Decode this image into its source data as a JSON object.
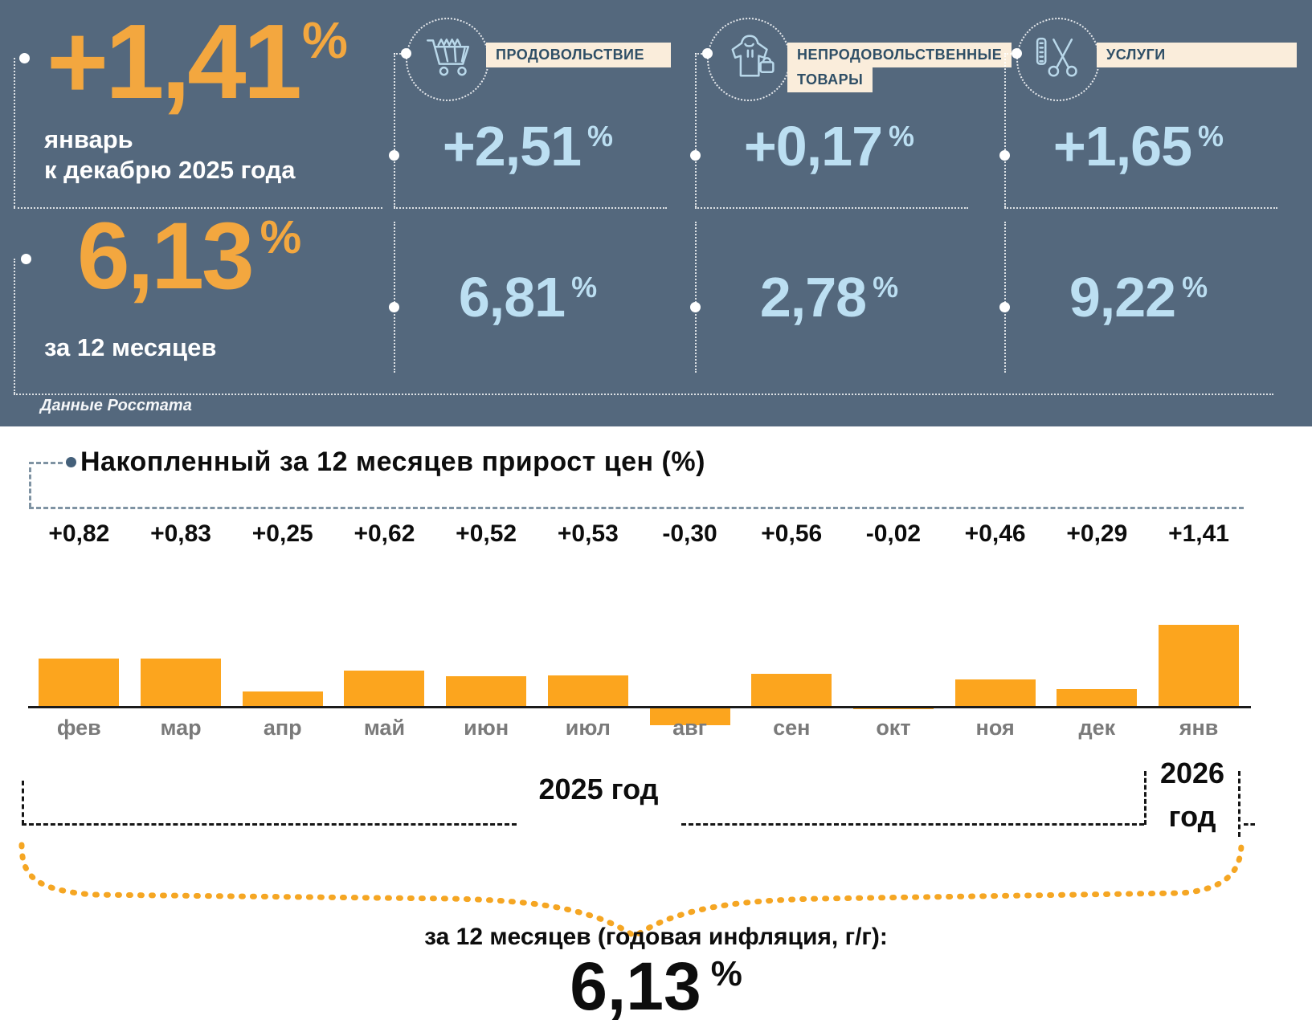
{
  "header": {
    "monthly_change": {
      "value": "+1,41",
      "percent_sign": "%",
      "caption_line1": "январь",
      "caption_line2": "к декабрю 2025 года"
    },
    "annual_change": {
      "value": "6,13",
      "percent_sign": "%",
      "caption": "за 12 месяцев"
    },
    "source_note": "Данные Росстата",
    "categories": [
      {
        "label": "ПРОДОВОЛЬСТВИЕ",
        "label_line2": "",
        "monthly": "+2,51",
        "annual": "6,81",
        "percent_sign": "%",
        "icon": "shopping-cart-icon"
      },
      {
        "label": "НЕПРОДОВОЛЬСТВЕННЫЕ",
        "label_line2": "ТОВАРЫ",
        "monthly": "+0,17",
        "annual": "2,78",
        "percent_sign": "%",
        "icon": "clothing-bag-icon"
      },
      {
        "label": "УСЛУГИ",
        "label_line2": "",
        "monthly": "+1,65",
        "annual": "9,22",
        "percent_sign": "%",
        "icon": "scissors-comb-icon"
      }
    ]
  },
  "chart_data": {
    "type": "bar",
    "title": "Накопленный за 12 месяцев прирост цен (%)",
    "categories": [
      "фев",
      "мар",
      "апр",
      "май",
      "июн",
      "июл",
      "авг",
      "сен",
      "окт",
      "ноя",
      "дек",
      "янв"
    ],
    "values": [
      0.82,
      0.83,
      0.25,
      0.62,
      0.52,
      0.53,
      -0.3,
      0.56,
      -0.02,
      0.46,
      0.29,
      1.41
    ],
    "data_labels": [
      "+0,82",
      "+0,83",
      "+0,25",
      "+0,62",
      "+0,52",
      "+0,53",
      "-0,30",
      "+0,56",
      "-0,02",
      "+0,46",
      "+0,29",
      "+1,41"
    ],
    "bar_color": "#FCA51E",
    "xlabel": "",
    "ylabel": "",
    "ylim": [
      -0.35,
      1.5
    ],
    "grid": false,
    "legend": null
  },
  "timeline": {
    "year_left": "2025 год",
    "year_right_line1": "2026",
    "year_right_line2": "год"
  },
  "summary": {
    "label": "за 12 месяцев (годовая инфляция, г/г):",
    "value": "6,13",
    "percent_sign": "%"
  },
  "colors": {
    "header_bg": "#54687D",
    "accent_orange": "#F3A73F",
    "bar_orange": "#FCA51E",
    "value_light_blue": "#BCDFF2",
    "label_cream": "#FAEDDB",
    "label_text": "#2F4F66"
  }
}
